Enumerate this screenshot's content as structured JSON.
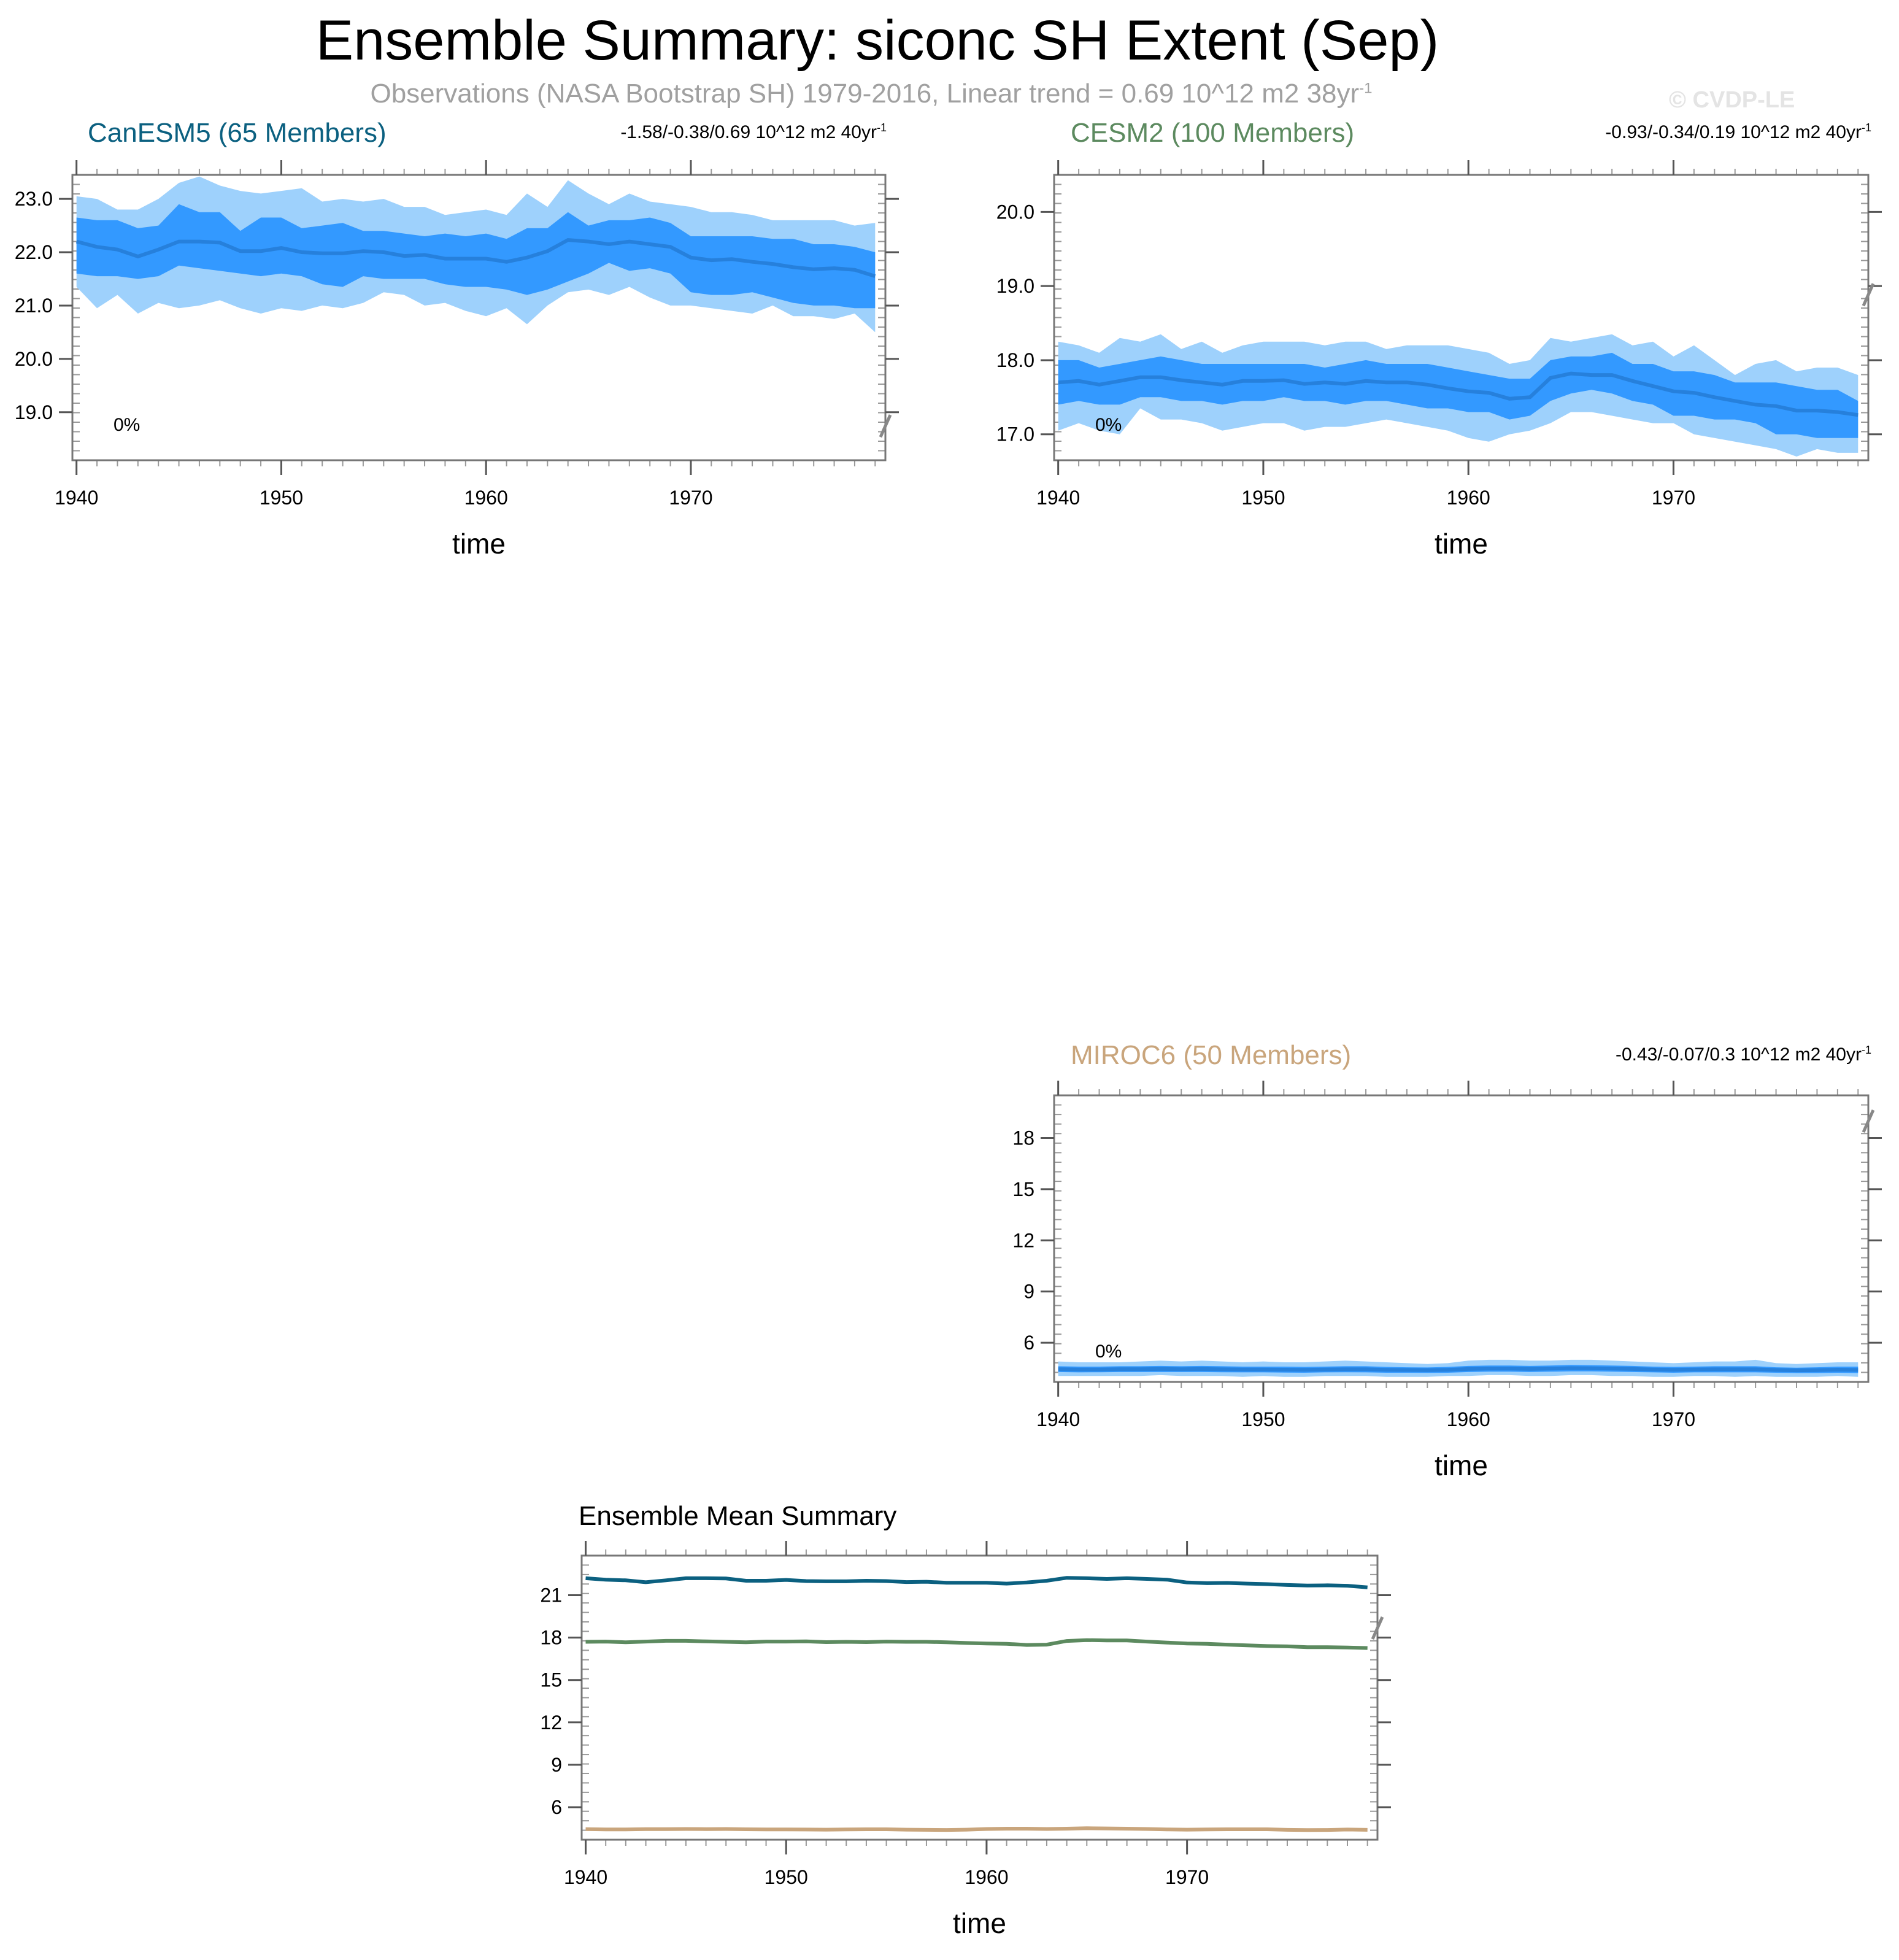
{
  "header": {
    "title": "Ensemble Summary: siconc SH Extent (Sep)",
    "subtitle": "Observations (NASA Bootstrap SH) 1979-2016, Linear trend = 0.69 10^12 m2 38yr",
    "subtitle_superscript": "-1",
    "watermark": "© CVDP-LE"
  },
  "colors": {
    "outer_band": "#9ed1fc",
    "inner_band": "#3399ff",
    "mean_line": "#2680dc",
    "frame": "#777777",
    "break_mark": "#888888"
  },
  "chart_data": [
    {
      "type": "area",
      "id": "canesm5",
      "title": "CanESM5 (65 Members)",
      "title_color": "#0b6080",
      "trend_text": "-1.58/-0.38/0.69 10^12 m2 40yr",
      "trend_superscript": "-1",
      "annotation": "0%",
      "xlabel": "time",
      "ylabel": "",
      "x": [
        1940,
        1941,
        1942,
        1943,
        1944,
        1945,
        1946,
        1947,
        1948,
        1949,
        1950,
        1951,
        1952,
        1953,
        1954,
        1955,
        1956,
        1957,
        1958,
        1959,
        1960,
        1961,
        1962,
        1963,
        1964,
        1965,
        1966,
        1967,
        1968,
        1969,
        1970,
        1971,
        1972,
        1973,
        1974,
        1975,
        1976,
        1977,
        1978,
        1979
      ],
      "xlim": [
        1939.8,
        1979.5
      ],
      "ylim": [
        18.1,
        23.45
      ],
      "xticks": [
        "1940",
        "1950",
        "1960",
        "1970"
      ],
      "yticks": [
        "19.0",
        "20.0",
        "21.0",
        "22.0",
        "23.0"
      ],
      "series": {
        "max": [
          23.05,
          23.0,
          22.8,
          22.8,
          23.0,
          23.3,
          23.42,
          23.25,
          23.15,
          23.1,
          23.15,
          23.2,
          22.95,
          23.0,
          22.95,
          23.0,
          22.85,
          22.85,
          22.7,
          22.75,
          22.8,
          22.7,
          23.1,
          22.85,
          23.35,
          23.1,
          22.9,
          23.1,
          22.95,
          22.9,
          22.85,
          22.75,
          22.75,
          22.7,
          22.6,
          22.6,
          22.6,
          22.6,
          22.5,
          22.55
        ],
        "p75": [
          22.65,
          22.6,
          22.6,
          22.45,
          22.5,
          22.9,
          22.75,
          22.75,
          22.4,
          22.65,
          22.65,
          22.45,
          22.5,
          22.55,
          22.4,
          22.4,
          22.35,
          22.3,
          22.35,
          22.3,
          22.35,
          22.25,
          22.45,
          22.45,
          22.75,
          22.5,
          22.6,
          22.6,
          22.65,
          22.55,
          22.3,
          22.3,
          22.3,
          22.3,
          22.25,
          22.25,
          22.15,
          22.15,
          22.1,
          22.0
        ],
        "mean": [
          22.2,
          22.1,
          22.05,
          21.92,
          22.05,
          22.2,
          22.2,
          22.18,
          22.02,
          22.02,
          22.08,
          22.0,
          21.98,
          21.98,
          22.02,
          22.0,
          21.93,
          21.95,
          21.88,
          21.88,
          21.88,
          21.82,
          21.9,
          22.02,
          22.23,
          22.2,
          22.15,
          22.2,
          22.15,
          22.1,
          21.9,
          21.85,
          21.87,
          21.82,
          21.78,
          21.72,
          21.68,
          21.7,
          21.67,
          21.55
        ],
        "p25": [
          21.6,
          21.55,
          21.55,
          21.5,
          21.55,
          21.75,
          21.7,
          21.65,
          21.6,
          21.55,
          21.6,
          21.55,
          21.4,
          21.35,
          21.55,
          21.5,
          21.5,
          21.5,
          21.4,
          21.35,
          21.35,
          21.3,
          21.2,
          21.3,
          21.45,
          21.6,
          21.8,
          21.65,
          21.7,
          21.6,
          21.25,
          21.2,
          21.2,
          21.25,
          21.15,
          21.05,
          21.0,
          21.0,
          20.95,
          20.95
        ],
        "min": [
          21.35,
          20.95,
          21.2,
          20.85,
          21.05,
          20.95,
          21.0,
          21.1,
          20.95,
          20.85,
          20.95,
          20.9,
          21.0,
          20.95,
          21.05,
          21.25,
          21.2,
          21.0,
          21.05,
          20.9,
          20.8,
          20.95,
          20.65,
          21.0,
          21.25,
          21.3,
          21.2,
          21.35,
          21.15,
          21.0,
          21.0,
          20.95,
          20.9,
          20.85,
          21.0,
          20.8,
          20.8,
          20.75,
          20.85,
          20.5
        ]
      }
    },
    {
      "type": "area",
      "id": "cesm2",
      "title": "CESM2 (100 Members)",
      "title_color": "#5c8a5f",
      "trend_text": "-0.93/-0.34/0.19 10^12 m2 40yr",
      "trend_superscript": "-1",
      "annotation": "0%",
      "xlabel": "time",
      "ylabel": "",
      "x": [
        1940,
        1941,
        1942,
        1943,
        1944,
        1945,
        1946,
        1947,
        1948,
        1949,
        1950,
        1951,
        1952,
        1953,
        1954,
        1955,
        1956,
        1957,
        1958,
        1959,
        1960,
        1961,
        1962,
        1963,
        1964,
        1965,
        1966,
        1967,
        1968,
        1969,
        1970,
        1971,
        1972,
        1973,
        1974,
        1975,
        1976,
        1977,
        1978,
        1979
      ],
      "xlim": [
        1939.8,
        1979.5
      ],
      "ylim": [
        16.65,
        20.5
      ],
      "xticks": [
        "1940",
        "1950",
        "1960",
        "1970"
      ],
      "yticks": [
        "17.0",
        "18.0",
        "19.0",
        "20.0"
      ],
      "series": {
        "max": [
          18.25,
          18.2,
          18.1,
          18.3,
          18.25,
          18.35,
          18.15,
          18.25,
          18.1,
          18.2,
          18.25,
          18.25,
          18.25,
          18.2,
          18.25,
          18.25,
          18.15,
          18.2,
          18.2,
          18.2,
          18.15,
          18.1,
          17.95,
          18.0,
          18.3,
          18.25,
          18.3,
          18.35,
          18.2,
          18.25,
          18.05,
          18.2,
          18.0,
          17.8,
          17.95,
          18.0,
          17.85,
          17.9,
          17.9,
          17.8
        ],
        "p75": [
          18.0,
          18.0,
          17.9,
          17.95,
          18.0,
          18.05,
          18.0,
          17.95,
          17.95,
          17.95,
          17.95,
          17.95,
          17.95,
          17.9,
          17.95,
          18.0,
          17.95,
          17.95,
          17.95,
          17.9,
          17.85,
          17.8,
          17.75,
          17.75,
          18.0,
          18.05,
          18.05,
          18.1,
          17.95,
          17.95,
          17.85,
          17.85,
          17.8,
          17.7,
          17.7,
          17.7,
          17.65,
          17.6,
          17.6,
          17.45
        ],
        "mean": [
          17.7,
          17.72,
          17.67,
          17.72,
          17.77,
          17.77,
          17.73,
          17.7,
          17.67,
          17.72,
          17.72,
          17.73,
          17.68,
          17.7,
          17.68,
          17.72,
          17.7,
          17.7,
          17.67,
          17.62,
          17.58,
          17.56,
          17.48,
          17.5,
          17.76,
          17.82,
          17.8,
          17.8,
          17.72,
          17.65,
          17.58,
          17.56,
          17.5,
          17.45,
          17.4,
          17.38,
          17.32,
          17.32,
          17.3,
          17.26
        ],
        "p25": [
          17.4,
          17.45,
          17.4,
          17.4,
          17.5,
          17.5,
          17.45,
          17.45,
          17.4,
          17.45,
          17.45,
          17.5,
          17.45,
          17.45,
          17.4,
          17.45,
          17.45,
          17.4,
          17.35,
          17.35,
          17.3,
          17.3,
          17.2,
          17.25,
          17.45,
          17.55,
          17.6,
          17.55,
          17.45,
          17.4,
          17.25,
          17.25,
          17.2,
          17.2,
          17.15,
          17.0,
          17.0,
          16.95,
          16.95,
          16.95
        ],
        "min": [
          17.05,
          17.15,
          17.05,
          17.0,
          17.35,
          17.2,
          17.2,
          17.15,
          17.05,
          17.1,
          17.15,
          17.15,
          17.05,
          17.1,
          17.1,
          17.15,
          17.2,
          17.15,
          17.1,
          17.05,
          16.95,
          16.9,
          17.0,
          17.05,
          17.15,
          17.3,
          17.3,
          17.25,
          17.2,
          17.15,
          17.15,
          17.0,
          16.95,
          16.9,
          16.85,
          16.8,
          16.7,
          16.8,
          16.75,
          16.75
        ]
      }
    },
    {
      "type": "area",
      "id": "miroc6",
      "title": "MIROC6 (50 Members)",
      "title_color": "#c9a57c",
      "trend_text": "-0.43/-0.07/0.3 10^12 m2 40yr",
      "trend_superscript": "-1",
      "annotation": "0%",
      "xlabel": "time",
      "ylabel": "",
      "x": [
        1940,
        1941,
        1942,
        1943,
        1944,
        1945,
        1946,
        1947,
        1948,
        1949,
        1950,
        1951,
        1952,
        1953,
        1954,
        1955,
        1956,
        1957,
        1958,
        1959,
        1960,
        1961,
        1962,
        1963,
        1964,
        1965,
        1966,
        1967,
        1968,
        1969,
        1970,
        1971,
        1972,
        1973,
        1974,
        1975,
        1976,
        1977,
        1978,
        1979
      ],
      "xlim": [
        1939.8,
        1979.5
      ],
      "ylim": [
        3.7,
        20.5
      ],
      "xticks": [
        "1940",
        "1950",
        "1960",
        "1970"
      ],
      "yticks": [
        "6",
        "9",
        "12",
        "15",
        "18"
      ],
      "series": {
        "max": [
          4.9,
          4.85,
          4.85,
          4.85,
          4.9,
          4.95,
          4.9,
          4.95,
          4.9,
          4.85,
          4.9,
          4.85,
          4.85,
          4.9,
          4.95,
          4.9,
          4.85,
          4.8,
          4.75,
          4.8,
          4.95,
          5.0,
          5.0,
          4.95,
          4.95,
          5.0,
          5.0,
          4.95,
          4.9,
          4.85,
          4.8,
          4.85,
          4.9,
          4.9,
          5.0,
          4.8,
          4.75,
          4.8,
          4.85,
          4.85
        ],
        "p75": [
          4.62,
          4.6,
          4.6,
          4.62,
          4.62,
          4.64,
          4.62,
          4.64,
          4.62,
          4.6,
          4.6,
          4.6,
          4.58,
          4.6,
          4.62,
          4.62,
          4.58,
          4.56,
          4.55,
          4.58,
          4.64,
          4.66,
          4.66,
          4.64,
          4.66,
          4.7,
          4.68,
          4.66,
          4.64,
          4.6,
          4.58,
          4.6,
          4.62,
          4.62,
          4.62,
          4.56,
          4.54,
          4.56,
          4.6,
          4.6
        ],
        "mean": [
          4.45,
          4.43,
          4.43,
          4.45,
          4.45,
          4.46,
          4.45,
          4.46,
          4.44,
          4.43,
          4.43,
          4.42,
          4.41,
          4.43,
          4.44,
          4.44,
          4.41,
          4.4,
          4.39,
          4.41,
          4.46,
          4.48,
          4.48,
          4.46,
          4.48,
          4.51,
          4.5,
          4.48,
          4.46,
          4.43,
          4.41,
          4.43,
          4.44,
          4.44,
          4.44,
          4.4,
          4.38,
          4.39,
          4.42,
          4.4
        ],
        "p25": [
          4.28,
          4.26,
          4.27,
          4.28,
          4.28,
          4.28,
          4.28,
          4.28,
          4.27,
          4.26,
          4.26,
          4.25,
          4.24,
          4.26,
          4.27,
          4.26,
          4.24,
          4.24,
          4.23,
          4.24,
          4.28,
          4.3,
          4.3,
          4.28,
          4.3,
          4.32,
          4.32,
          4.3,
          4.28,
          4.26,
          4.24,
          4.26,
          4.26,
          4.26,
          4.26,
          4.24,
          4.22,
          4.22,
          4.24,
          4.22
        ],
        "min": [
          4.05,
          4.05,
          4.05,
          4.05,
          4.05,
          4.1,
          4.05,
          4.05,
          4.05,
          4.0,
          4.05,
          4.0,
          4.0,
          4.05,
          4.05,
          4.05,
          4.0,
          4.0,
          4.0,
          4.05,
          4.05,
          4.1,
          4.1,
          4.05,
          4.05,
          4.1,
          4.1,
          4.05,
          4.05,
          4.0,
          4.0,
          4.05,
          4.05,
          4.0,
          4.05,
          4.0,
          4.0,
          4.0,
          4.05,
          4.0
        ]
      }
    },
    {
      "type": "line",
      "id": "ensemble-mean",
      "title": "Ensemble Mean Summary",
      "title_color": "#000000",
      "xlabel": "time",
      "ylabel": "",
      "x": [
        1940,
        1941,
        1942,
        1943,
        1944,
        1945,
        1946,
        1947,
        1948,
        1949,
        1950,
        1951,
        1952,
        1953,
        1954,
        1955,
        1956,
        1957,
        1958,
        1959,
        1960,
        1961,
        1962,
        1963,
        1964,
        1965,
        1966,
        1967,
        1968,
        1969,
        1970,
        1971,
        1972,
        1973,
        1974,
        1975,
        1976,
        1977,
        1978,
        1979
      ],
      "xlim": [
        1939.8,
        1979.5
      ],
      "ylim": [
        3.7,
        23.8
      ],
      "xticks": [
        "1940",
        "1950",
        "1960",
        "1970"
      ],
      "yticks": [
        "6",
        "9",
        "12",
        "15",
        "18",
        "21"
      ],
      "series": [
        {
          "id": "canesm5",
          "color": "#0b6080",
          "values": [
            22.2,
            22.1,
            22.05,
            21.92,
            22.05,
            22.2,
            22.2,
            22.18,
            22.02,
            22.02,
            22.08,
            22.0,
            21.98,
            21.98,
            22.02,
            22.0,
            21.93,
            21.95,
            21.88,
            21.88,
            21.88,
            21.82,
            21.9,
            22.02,
            22.23,
            22.2,
            22.15,
            22.2,
            22.15,
            22.1,
            21.9,
            21.85,
            21.87,
            21.82,
            21.78,
            21.72,
            21.68,
            21.7,
            21.67,
            21.55
          ]
        },
        {
          "id": "cesm2",
          "color": "#5c8a5f",
          "values": [
            17.7,
            17.72,
            17.67,
            17.72,
            17.77,
            17.77,
            17.73,
            17.7,
            17.67,
            17.72,
            17.72,
            17.73,
            17.68,
            17.7,
            17.68,
            17.72,
            17.7,
            17.7,
            17.67,
            17.62,
            17.58,
            17.56,
            17.48,
            17.5,
            17.76,
            17.82,
            17.8,
            17.8,
            17.72,
            17.65,
            17.58,
            17.56,
            17.5,
            17.45,
            17.4,
            17.38,
            17.32,
            17.32,
            17.3,
            17.26
          ]
        },
        {
          "id": "miroc6",
          "color": "#c9a57c",
          "values": [
            4.45,
            4.43,
            4.43,
            4.45,
            4.45,
            4.46,
            4.45,
            4.46,
            4.44,
            4.43,
            4.43,
            4.42,
            4.41,
            4.43,
            4.44,
            4.44,
            4.41,
            4.4,
            4.39,
            4.41,
            4.46,
            4.48,
            4.48,
            4.46,
            4.48,
            4.51,
            4.5,
            4.48,
            4.46,
            4.43,
            4.41,
            4.43,
            4.44,
            4.44,
            4.44,
            4.4,
            4.38,
            4.39,
            4.42,
            4.4
          ]
        }
      ]
    }
  ]
}
